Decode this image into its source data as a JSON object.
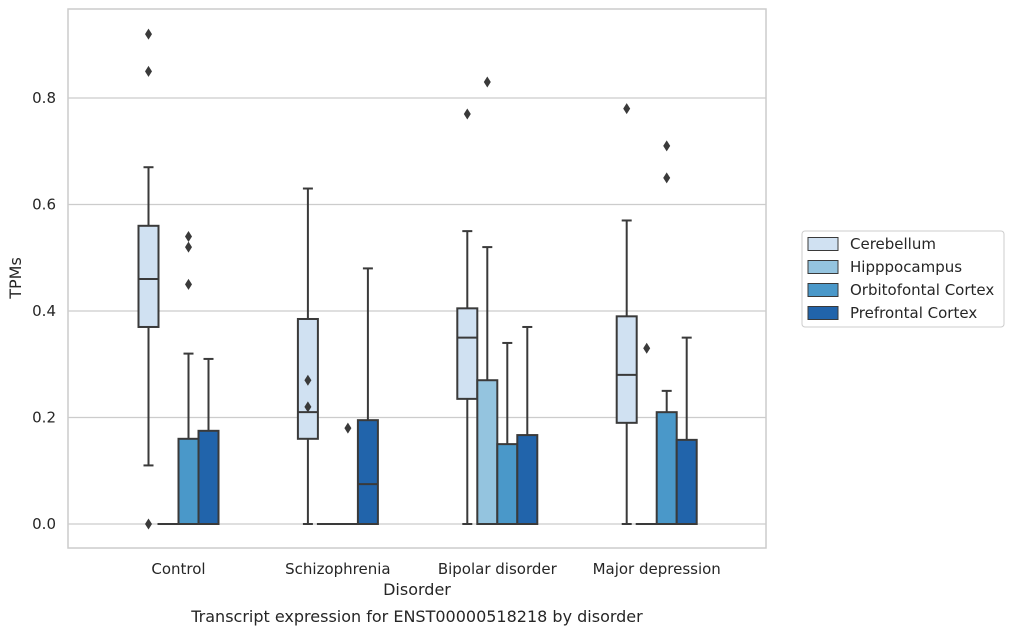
{
  "chart_data": {
    "type": "box",
    "title": "",
    "caption": "Transcript expression for ENST00000518218 by disorder",
    "xlabel": "Disorder",
    "ylabel": "TPMs",
    "ylim": [
      -0.045,
      0.97
    ],
    "yticks": [
      0.0,
      0.2,
      0.4,
      0.6,
      0.8
    ],
    "ytick_labels": [
      "0.0",
      "0.2",
      "0.4",
      "0.6",
      "0.8"
    ],
    "grid": "horizontal",
    "legend_position": "right",
    "categories": [
      "Control",
      "Schizophrenia",
      "Bipolar disorder",
      "Major depression"
    ],
    "series": [
      {
        "name": "Cerebellum",
        "color": "#d0e1f2",
        "boxes": [
          {
            "q1": 0.37,
            "median": 0.46,
            "q3": 0.56,
            "whisker_low": 0.11,
            "whisker_high": 0.67,
            "outliers": [
              0.92,
              0.85,
              0.0
            ]
          },
          {
            "q1": 0.16,
            "median": 0.21,
            "q3": 0.385,
            "whisker_low": 0.0,
            "whisker_high": 0.63,
            "outliers": [
              0.27,
              0.22
            ]
          },
          {
            "q1": 0.235,
            "median": 0.35,
            "q3": 0.405,
            "whisker_low": 0.0,
            "whisker_high": 0.55,
            "outliers": [
              0.77
            ]
          },
          {
            "q1": 0.19,
            "median": 0.28,
            "q3": 0.39,
            "whisker_low": 0.0,
            "whisker_high": 0.57,
            "outliers": [
              0.78
            ]
          }
        ]
      },
      {
        "name": "Hipppocampus",
        "color": "#94c4df",
        "boxes": [
          {
            "q1": 0.0,
            "median": 0.0,
            "q3": 0.0,
            "whisker_low": 0.0,
            "whisker_high": 0.0,
            "outliers": []
          },
          {
            "q1": 0.0,
            "median": 0.0,
            "q3": 0.0,
            "whisker_low": 0.0,
            "whisker_high": 0.0,
            "outliers": []
          },
          {
            "q1": 0.0,
            "median": 0.0,
            "q3": 0.27,
            "whisker_low": 0.0,
            "whisker_high": 0.52,
            "outliers": [
              0.83
            ]
          },
          {
            "q1": 0.0,
            "median": 0.0,
            "q3": 0.0,
            "whisker_low": 0.0,
            "whisker_high": 0.0,
            "outliers": [
              0.33
            ]
          }
        ]
      },
      {
        "name": "Orbitofontal Cortex",
        "color": "#4a98c9",
        "boxes": [
          {
            "q1": 0.0,
            "median": 0.0,
            "q3": 0.16,
            "whisker_low": 0.0,
            "whisker_high": 0.32,
            "outliers": [
              0.54,
              0.52,
              0.45
            ]
          },
          {
            "q1": 0.0,
            "median": 0.0,
            "q3": 0.0,
            "whisker_low": 0.0,
            "whisker_high": 0.0,
            "outliers": [
              0.18
            ]
          },
          {
            "q1": 0.0,
            "median": 0.0,
            "q3": 0.15,
            "whisker_low": 0.0,
            "whisker_high": 0.34,
            "outliers": []
          },
          {
            "q1": 0.0,
            "median": 0.0,
            "q3": 0.21,
            "whisker_low": 0.0,
            "whisker_high": 0.25,
            "outliers": [
              0.71,
              0.65
            ]
          }
        ]
      },
      {
        "name": "Prefrontal Cortex",
        "color": "#2164ab",
        "boxes": [
          {
            "q1": 0.0,
            "median": 0.0,
            "q3": 0.175,
            "whisker_low": 0.0,
            "whisker_high": 0.31,
            "outliers": []
          },
          {
            "q1": 0.0,
            "median": 0.075,
            "q3": 0.195,
            "whisker_low": 0.0,
            "whisker_high": 0.48,
            "outliers": []
          },
          {
            "q1": 0.0,
            "median": 0.0,
            "q3": 0.167,
            "whisker_low": 0.0,
            "whisker_high": 0.37,
            "outliers": []
          },
          {
            "q1": 0.0,
            "median": 0.0,
            "q3": 0.158,
            "whisker_low": 0.0,
            "whisker_high": 0.35,
            "outliers": []
          }
        ]
      }
    ]
  }
}
